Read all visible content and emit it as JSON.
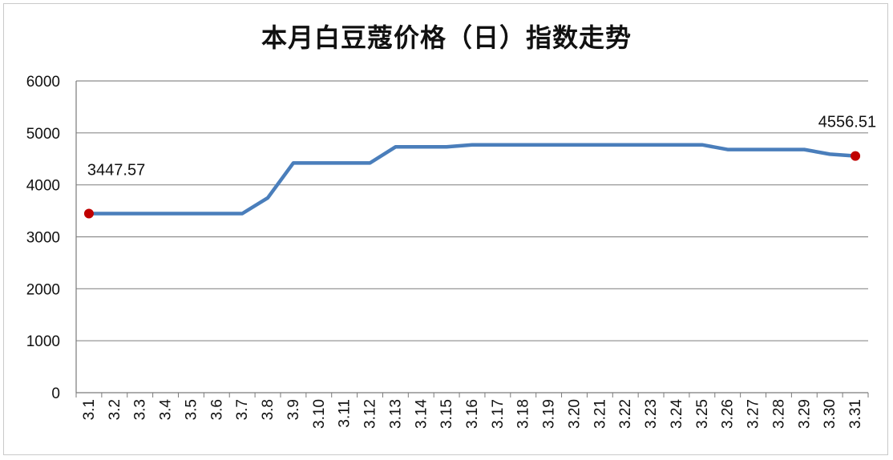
{
  "chart_data": {
    "type": "line",
    "title": "本月白豆蔻价格（日）指数走势",
    "xlabel": "",
    "ylabel": "",
    "ylim": [
      0,
      6000
    ],
    "yticks": [
      0,
      1000,
      2000,
      3000,
      4000,
      5000,
      6000
    ],
    "grid": true,
    "legend": "none",
    "categories": [
      "3.1",
      "3.2",
      "3.3",
      "3.4",
      "3.5",
      "3.6",
      "3.7",
      "3.8",
      "3.9",
      "3.10",
      "3.11",
      "3.12",
      "3.13",
      "3.14",
      "3.15",
      "3.16",
      "3.17",
      "3.18",
      "3.19",
      "3.20",
      "3.21",
      "3.22",
      "3.23",
      "3.24",
      "3.25",
      "3.26",
      "3.27",
      "3.28",
      "3.29",
      "3.30",
      "3.31"
    ],
    "series": [
      {
        "color": "#4a7ebb",
        "values": [
          3447.57,
          3447.57,
          3447.57,
          3447.57,
          3447.57,
          3447.57,
          3447.57,
          3750,
          4420,
          4420,
          4420,
          4420,
          4730,
          4730,
          4730,
          4770,
          4770,
          4770,
          4770,
          4770,
          4770,
          4770,
          4770,
          4770,
          4770,
          4680,
          4680,
          4680,
          4680,
          4590,
          4556.51
        ]
      }
    ],
    "annotations": [
      {
        "index": 0,
        "text": "3447.57"
      },
      {
        "index": 30,
        "text": "4556.51"
      }
    ],
    "marker_color": "#c00000"
  }
}
